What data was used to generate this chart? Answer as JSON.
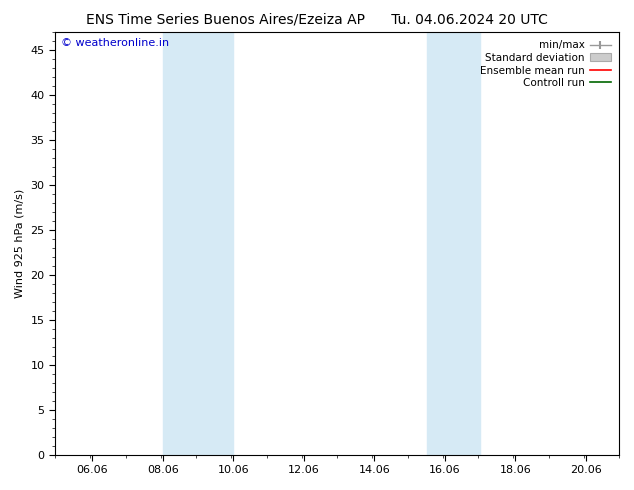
{
  "title_left": "ENS Time Series Buenos Aires/Ezeiza AP",
  "title_right": "Tu. 04.06.2024 20 UTC",
  "ylabel": "Wind 925 hPa (m/s)",
  "watermark": "© weatheronline.in",
  "x_ticks": [
    6.06,
    8.06,
    10.06,
    12.06,
    14.06,
    16.06,
    18.06,
    20.06
  ],
  "x_tick_labels": [
    "06.06",
    "08.06",
    "10.06",
    "12.06",
    "14.06",
    "16.06",
    "18.06",
    "20.06"
  ],
  "x_min": 5.0,
  "x_max": 21.0,
  "y_min": 0,
  "y_max": 47,
  "y_ticks": [
    0,
    5,
    10,
    15,
    20,
    25,
    30,
    35,
    40,
    45
  ],
  "shaded_bands": [
    {
      "x_start": 8.06,
      "x_end": 10.06
    },
    {
      "x_start": 15.56,
      "x_end": 17.06
    }
  ],
  "shade_color": "#d6eaf5",
  "background_color": "#ffffff",
  "title_fontsize": 10,
  "axis_fontsize": 8,
  "tick_fontsize": 8,
  "watermark_color": "#0000cc",
  "watermark_fontsize": 8,
  "legend_fontsize": 7.5
}
